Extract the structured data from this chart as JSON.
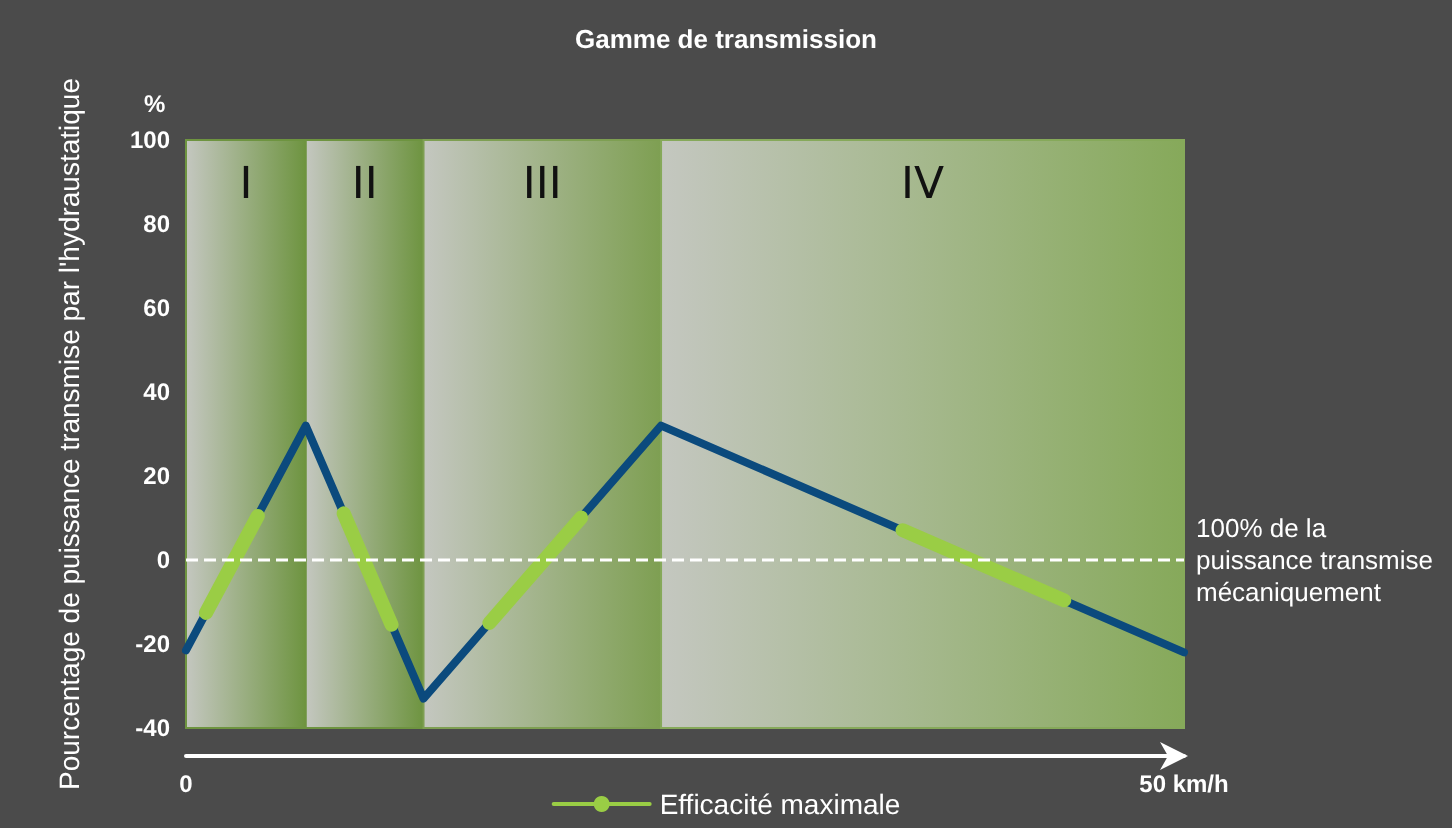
{
  "chart_data": {
    "type": "line",
    "title": "Gamme de transmission",
    "ylabel": "Pourcentage de puissance transmise par l'hydraustatique",
    "annotations": [
      "%"
    ],
    "xlim": [
      0,
      50
    ],
    "xticks": [
      0,
      {
        "value": 50,
        "label": "50 km/h"
      }
    ],
    "ylim": [
      -40,
      100
    ],
    "yticks": [
      -40,
      -20,
      0,
      20,
      40,
      60,
      80,
      100
    ],
    "series": [
      {
        "color": "#0b4a7d",
        "x": [
          0,
          6,
          11.9,
          23.8,
          50
        ],
        "values": [
          -21.5,
          32,
          -33,
          32,
          -22
        ]
      },
      {
        "name": "Efficacité maximale",
        "color": "#9acd45",
        "x": [
          1,
          3.6,
          5,
          7.9,
          10.3,
          12,
          15.2,
          19.8,
          25,
          35.9,
          44
        ],
        "values": [
          -12.6,
          10.5,
          null,
          11.1,
          -15.4,
          null,
          -15,
          10.1,
          null,
          7.1,
          -9.6
        ]
      }
    ],
    "bands": [
      {
        "axis": "x",
        "from": 0,
        "to": 6,
        "label": "I",
        "color": "#6e9440"
      },
      {
        "axis": "x",
        "from": 6,
        "to": 11.9,
        "label": "II",
        "color": "#6e9440"
      },
      {
        "axis": "x",
        "from": 11.9,
        "to": 23.8,
        "label": "III",
        "color": "#7e9f52"
      },
      {
        "axis": "x",
        "from": 23.8,
        "to": 50,
        "label": "IV",
        "color": "#86a95a"
      }
    ],
    "ref_lines": [
      {
        "axis": "y",
        "value": 0,
        "label": "100% de la puissance transmise mécaniquement",
        "color": "#ffffff",
        "line_style": "dashed"
      }
    ],
    "legend": "bottom",
    "grid": false,
    "marker": "none",
    "line_style": "solid"
  }
}
